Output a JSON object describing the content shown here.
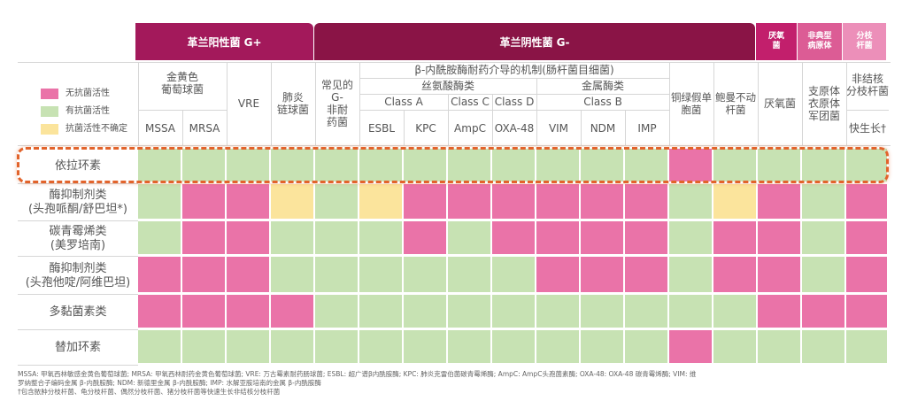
{
  "colors": {
    "inactive": "#ea73a8",
    "active": "#c7e2b3",
    "uncertain": "#fbe49c",
    "gram_pos_band": "#a3195b",
    "gram_neg_band": "#8a1446",
    "anaerobe_band": "#c21f6c",
    "atypical_band": "#dc5c95",
    "nonfermenter_band": "#ec8fb9",
    "highlight": "#e2632b"
  },
  "bands": {
    "gram_pos": "革兰阳性菌 G+",
    "gram_neg": "革兰阴性菌 G-",
    "anaerobe": "厌氧\n菌",
    "atypical": "非典型\n病原体",
    "nonfermenter": "分枝\n杆菌"
  },
  "legend": [
    {
      "key": "inactive",
      "label": "无抗菌活性"
    },
    {
      "key": "active",
      "label": "有抗菌活性"
    },
    {
      "key": "uncertain",
      "label": "抗菌活性不确定"
    }
  ],
  "headers": {
    "staph": "金黄色\n葡萄球菌",
    "mssa": "MSSA",
    "mrsa": "MRSA",
    "vre": "VRE",
    "strep": "肺炎\n链球菌",
    "common_g": "常见的\nG-\n非耐\n药菌",
    "beta_lactamase": "β-内酰胺酶耐药介导的机制(肠杆菌目细菌)",
    "serine": "丝氨酸酶类",
    "metallo": "金属酶类",
    "class_a": "Class A",
    "class_c": "Class C",
    "class_d": "Class D",
    "class_b": "Class B",
    "esbl": "ESBL",
    "kpc": "KPC",
    "ampc": "AmpC",
    "oxa48": "OXA-48",
    "vim": "VIM",
    "ndm": "NDM",
    "imp": "IMP",
    "pseudomonas": "铜绿假单\n胞菌",
    "acinetobacter": "鲍曼不动\n杆菌",
    "anaerobe": "厌氧菌",
    "atypical": "支原体\n衣原体\n军团菌",
    "ntm": "非结核\n分枝杆菌",
    "fast": "快生长†"
  },
  "chart_data": {
    "type": "table",
    "columns": [
      "MSSA",
      "MRSA",
      "VRE",
      "肺炎链球菌",
      "常见的G-非耐药菌",
      "ESBL",
      "KPC",
      "AmpC",
      "OXA-48",
      "VIM",
      "NDM",
      "IMP",
      "铜绿假单胞菌",
      "鲍曼不动杆菌",
      "厌氧菌",
      "支原体衣原体军团菌",
      "快生长†"
    ],
    "rows": [
      {
        "label": "依拉环素",
        "values": [
          "active",
          "active",
          "active",
          "active",
          "active",
          "active",
          "active",
          "active",
          "active",
          "active",
          "active",
          "active",
          "inactive",
          "active",
          "active",
          "active",
          "active"
        ]
      },
      {
        "label": "酶抑制剂类\n(头孢哌酮/舒巴坦*)",
        "values": [
          "active",
          "inactive",
          "inactive",
          "uncertain",
          "active",
          "uncertain",
          "inactive",
          "inactive",
          "inactive",
          "inactive",
          "inactive",
          "inactive",
          "active",
          "uncertain",
          "inactive",
          "active",
          "inactive"
        ]
      },
      {
        "label": "碳青霉烯类\n(美罗培南)",
        "values": [
          "active",
          "inactive",
          "inactive",
          "active",
          "active",
          "active",
          "inactive",
          "active",
          "inactive",
          "inactive",
          "inactive",
          "inactive",
          "active",
          "inactive",
          "inactive",
          "active",
          "inactive"
        ]
      },
      {
        "label": "酶抑制剂类\n(头孢他啶/阿维巴坦)",
        "values": [
          "inactive",
          "inactive",
          "inactive",
          "active",
          "active",
          "active",
          "active",
          "active",
          "active",
          "inactive",
          "inactive",
          "inactive",
          "active",
          "inactive",
          "inactive",
          "active",
          "inactive"
        ]
      },
      {
        "label": "多黏菌素类",
        "values": [
          "inactive",
          "inactive",
          "inactive",
          "inactive",
          "active",
          "active",
          "active",
          "active",
          "active",
          "active",
          "active",
          "active",
          "active",
          "active",
          "inactive",
          "inactive",
          "inactive"
        ]
      },
      {
        "label": "替加环素",
        "values": [
          "active",
          "active",
          "active",
          "active",
          "active",
          "active",
          "active",
          "active",
          "active",
          "active",
          "active",
          "active",
          "inactive",
          "active",
          "active",
          "active",
          "active"
        ]
      }
    ]
  },
  "footnotes": [
    "MSSA: 甲氧西林敏感金黄色葡萄球菌; MRSA: 甲氧西林耐药金黄色葡萄球菌; VRE: 万古霉素耐药肠球菌; ESBL: 超广谱β内酰胺酶; KPC: 肺炎克雷伯菌碳青霉烯酶; AmpC: AmpC头孢菌素酶; OXA-48: OXA-48 碳青霉烯酶; VIM: 维",
    "罗纳整合子编码金属 β-内酰胺酶; NDM: 新德里金属 β-内酰胺酶; IMP: 水解亚胺培南的金属 β-内酰胺酶",
    "†包含脓肿分枝杆菌、龟分枝杆菌、偶然分枝杆菌、猪分枝杆菌等快速生长非结核分枝杆菌"
  ]
}
